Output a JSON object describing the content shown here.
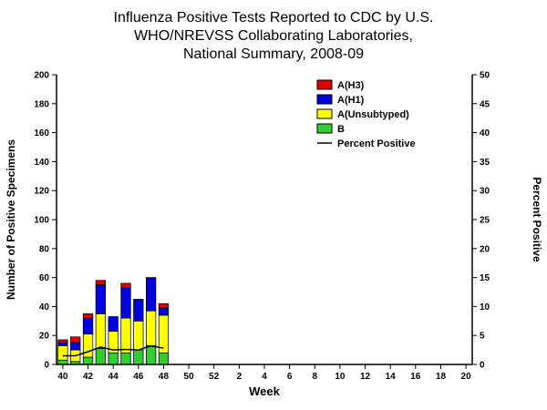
{
  "title_lines": [
    "Influenza Positive Tests Reported to CDC by U.S.",
    "WHO/NREVSS Collaborating Laboratories,",
    "National Summary, 2008-09"
  ],
  "chart_data": {
    "type": "bar",
    "stacked": true,
    "title": "Influenza Positive Tests Reported to CDC by U.S. WHO/NREVSS Collaborating Laboratories, National Summary, 2008-09",
    "xlabel": "Week",
    "ylabel_left": "Number of Positive Specimens",
    "ylabel_right": "Percent Positive",
    "ylim_left": [
      0,
      200
    ],
    "ylim_right": [
      0,
      50
    ],
    "ytick_step_left": 20,
    "ytick_step_right": 5,
    "legend_position": "top-center-inside",
    "grid": false,
    "categories": [
      40,
      41,
      42,
      43,
      44,
      45,
      46,
      47,
      48,
      49,
      50,
      51,
      52,
      1,
      2,
      3,
      4,
      5,
      6,
      7,
      8,
      9,
      10,
      11,
      12,
      13,
      14,
      15,
      16,
      17,
      18,
      19,
      20
    ],
    "data_weeks": [
      40,
      41,
      42,
      43,
      44,
      45,
      46,
      47,
      48
    ],
    "series": [
      {
        "name": "A(H3)",
        "color": "#e00000",
        "values": [
          2,
          4,
          3,
          3,
          0,
          3,
          0,
          0,
          3
        ]
      },
      {
        "name": "A(H1)",
        "color": "#0000e0",
        "values": [
          2,
          5,
          11,
          20,
          10,
          21,
          15,
          23,
          5
        ]
      },
      {
        "name": "A(Unsubtyped)",
        "color": "#ffff00",
        "values": [
          10,
          8,
          16,
          24,
          15,
          24,
          20,
          24,
          26
        ]
      },
      {
        "name": "B",
        "color": "#33cc33",
        "values": [
          3,
          2,
          5,
          11,
          8,
          8,
          10,
          13,
          8
        ]
      }
    ],
    "line_series": {
      "name": "Percent Positive",
      "color": "#000000",
      "axis": "right",
      "values": [
        1.5,
        1.5,
        2.2,
        3.0,
        2.5,
        2.6,
        2.5,
        3.2,
        2.8
      ]
    }
  }
}
